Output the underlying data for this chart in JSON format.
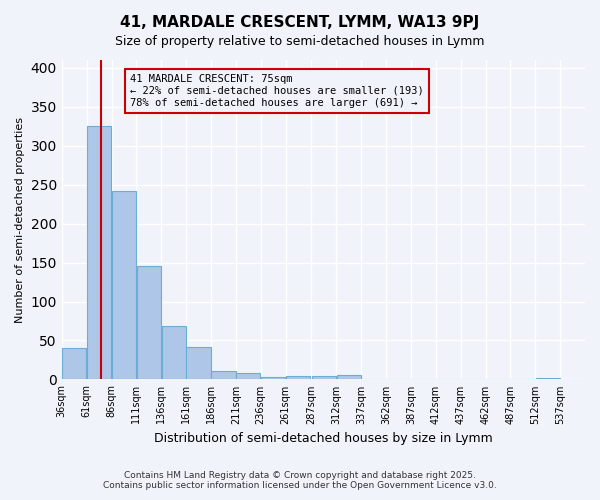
{
  "title": "41, MARDALE CRESCENT, LYMM, WA13 9PJ",
  "subtitle": "Size of property relative to semi-detached houses in Lymm",
  "xlabel": "Distribution of semi-detached houses by size in Lymm",
  "ylabel": "Number of semi-detached properties",
  "bar_values": [
    40,
    325,
    242,
    146,
    68,
    42,
    11,
    8,
    3,
    5,
    5,
    6,
    0,
    1,
    0,
    0,
    0,
    0,
    0,
    2
  ],
  "bin_labels": [
    "36sqm",
    "61sqm",
    "86sqm",
    "111sqm",
    "136sqm",
    "161sqm",
    "186sqm",
    "211sqm",
    "236sqm",
    "261sqm",
    "287sqm",
    "312sqm",
    "337sqm",
    "362sqm",
    "387sqm",
    "412sqm",
    "437sqm",
    "462sqm",
    "487sqm",
    "512sqm",
    "537sqm"
  ],
  "bin_edges": [
    36,
    61,
    86,
    111,
    136,
    161,
    186,
    211,
    236,
    261,
    287,
    312,
    337,
    362,
    387,
    412,
    437,
    462,
    487,
    512,
    537
  ],
  "property_line_x": 75,
  "bar_color": "#aec6e8",
  "bar_edge_color": "#6aaed6",
  "vline_color": "#cc0000",
  "annotation_text": "41 MARDALE CRESCENT: 75sqm\n← 22% of semi-detached houses are smaller (193)\n78% of semi-detached houses are larger (691) →",
  "annotation_box_color": "#cc0000",
  "bg_color": "#f0f4fa",
  "grid_color": "#ffffff",
  "ylim": [
    0,
    410
  ],
  "yticks": [
    0,
    50,
    100,
    150,
    200,
    250,
    300,
    350,
    400
  ],
  "footer_line1": "Contains HM Land Registry data © Crown copyright and database right 2025.",
  "footer_line2": "Contains public sector information licensed under the Open Government Licence v3.0."
}
